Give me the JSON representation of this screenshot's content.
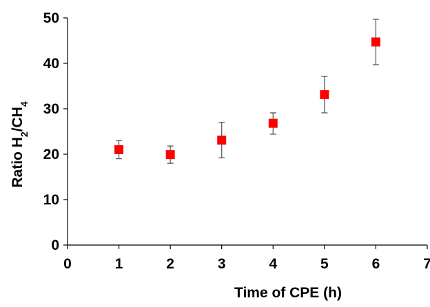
{
  "chart_data": {
    "type": "scatter",
    "title": "",
    "xlabel": "Time of CPE (h)",
    "ylabel": {
      "prefix": "Ratio H",
      "sub1": "2",
      "mid": "/CH",
      "sub2": "4"
    },
    "xlim": [
      0,
      7
    ],
    "ylim": [
      0,
      50
    ],
    "xticks": [
      0,
      1,
      2,
      3,
      4,
      5,
      6,
      7
    ],
    "yticks": [
      0,
      10,
      20,
      30,
      40,
      50
    ],
    "grid": false,
    "legend": "none",
    "series": [
      {
        "color": "#ff0000",
        "marker": "square",
        "x": [
          1,
          2,
          3,
          4,
          5,
          6
        ],
        "y": [
          21.0,
          19.9,
          23.1,
          26.8,
          33.1,
          44.7
        ],
        "error_low": [
          19.0,
          18.0,
          19.2,
          24.4,
          29.1,
          39.7
        ],
        "error_high": [
          23.0,
          21.8,
          27.0,
          29.1,
          37.1,
          49.7
        ]
      }
    ],
    "colors": {
      "marker": "#ff0000",
      "error_bar": "#595959",
      "axis": "#000000"
    }
  }
}
